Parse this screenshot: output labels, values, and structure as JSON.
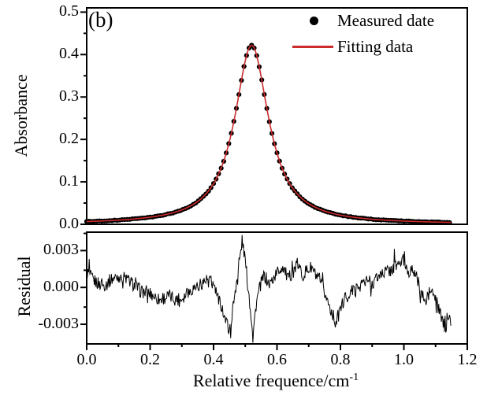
{
  "figure": {
    "panel_label": "(b)",
    "background": "#ffffff",
    "axis_color": "#000000",
    "xlabel_main": "Relative frequence/cm",
    "xlabel_sup": "-1",
    "top_panel": {
      "ylabel": "Absorbance"
    },
    "bottom_panel": {
      "ylabel": "Residual"
    },
    "legend": {
      "items": [
        {
          "marker": "dot",
          "marker_color": "#000000",
          "label": "Measured date"
        },
        {
          "marker": "line",
          "marker_color": "#cc2b2b",
          "label": "Fitting data"
        }
      ]
    }
  },
  "chart_data": [
    {
      "type": "scatter",
      "panel": "top",
      "title": "",
      "xlabel": "Relative frequence/cm^-1",
      "ylabel": "Absorbance",
      "xlim": [
        0,
        1.2
      ],
      "ylim": [
        0,
        0.51
      ],
      "grid": false,
      "legend_position": "top-right",
      "x_tick_values": [
        0,
        0.2,
        0.4,
        0.6,
        0.8,
        1.0,
        1.2
      ],
      "x_tick_labels": [
        "0.0",
        "0.2",
        "0.4",
        "0.6",
        "0.8",
        "1.0",
        "1.2"
      ],
      "x_minor_step": 0.1,
      "y_tick_values": [
        0,
        0.1,
        0.2,
        0.3,
        0.4,
        0.5
      ],
      "y_tick_labels": [
        "0.0",
        "0.1",
        "0.2",
        "0.3",
        "0.4",
        "0.5"
      ],
      "y_minor_step": 0.05,
      "series": [
        {
          "name": "Measured date",
          "type": "scatter",
          "color": "#000000",
          "model": {
            "kind": "lorentzian",
            "amplitude": 0.422,
            "center": 0.52,
            "gamma": 0.065,
            "baseline": 0
          },
          "x_start": 0,
          "x_end": 1.148,
          "x_step": 0.008,
          "noise_amp": 0.0006,
          "dot_radius": 3.1
        },
        {
          "name": "Fitting data",
          "type": "line",
          "color": "#cc2b2b",
          "model": {
            "kind": "lorentzian",
            "amplitude": 0.422,
            "center": 0.52,
            "gamma": 0.065,
            "baseline": 0
          },
          "x_start": 0,
          "x_end": 1.148,
          "x_step": 0.004,
          "line_width": 1.6
        }
      ],
      "fit_samples": {
        "x": [
          0,
          0.05,
          0.1,
          0.15,
          0.2,
          0.25,
          0.3,
          0.35,
          0.4,
          0.45,
          0.5,
          0.52,
          0.55,
          0.6,
          0.65,
          0.7,
          0.75,
          0.8,
          0.85,
          0.9,
          0.95,
          1.0,
          1.05,
          1.1,
          1.15
        ],
        "y": [
          0.0065,
          0.0079,
          0.0099,
          0.0126,
          0.0167,
          0.0231,
          0.0339,
          0.0538,
          0.0957,
          0.1954,
          0.3855,
          0.422,
          0.3479,
          0.1678,
          0.0844,
          0.0487,
          0.0312,
          0.0216,
          0.0158,
          0.012,
          0.0094,
          0.0076,
          0.0063,
          0.0052,
          0.0044
        ]
      }
    },
    {
      "type": "line",
      "panel": "bottom",
      "ylabel": "Residual",
      "xlim": [
        0,
        1.2
      ],
      "ylim": [
        -0.0046,
        0.0045
      ],
      "grid": false,
      "y_tick_values": [
        0.003,
        0,
        -0.003
      ],
      "y_tick_labels": [
        "0.003",
        "0.000",
        "-0.003"
      ],
      "y_minor_step": 0.0015,
      "series": [
        {
          "name": "Residual",
          "type": "line",
          "color": "#000000",
          "x_start": 0,
          "x_end": 1.148,
          "x_step": 0.002,
          "noise_amp": 0.00055,
          "spike_prob": 0.1,
          "spike_amp": 0.0011,
          "line_width": 1,
          "mean_points": [
            [
              0,
              0.0013
            ],
            [
              0.02,
              0.0006
            ],
            [
              0.05,
              0.0001
            ],
            [
              0.08,
              0.0007
            ],
            [
              0.11,
              0.001
            ],
            [
              0.14,
              0.0004
            ],
            [
              0.17,
              -0.0003
            ],
            [
              0.2,
              -0.0005
            ],
            [
              0.23,
              -0.001
            ],
            [
              0.26,
              -0.0007
            ],
            [
              0.29,
              -0.0011
            ],
            [
              0.32,
              -0.0004
            ],
            [
              0.35,
              0.0002
            ],
            [
              0.38,
              0.0006
            ],
            [
              0.4,
              0.0002
            ],
            [
              0.415,
              -0.0008
            ],
            [
              0.43,
              -0.0019
            ],
            [
              0.443,
              -0.0031
            ],
            [
              0.452,
              -0.0034
            ],
            [
              0.462,
              -0.0015
            ],
            [
              0.472,
              0.0005
            ],
            [
              0.482,
              0.0022
            ],
            [
              0.49,
              0.0038
            ],
            [
              0.497,
              0.0028
            ],
            [
              0.504,
              0.0012
            ],
            [
              0.511,
              -0.0005
            ],
            [
              0.518,
              -0.0022
            ],
            [
              0.525,
              -0.0037
            ],
            [
              0.535,
              -0.0012
            ],
            [
              0.548,
              0.0002
            ],
            [
              0.56,
              0.001
            ],
            [
              0.575,
              0.0002
            ],
            [
              0.59,
              0.0008
            ],
            [
              0.605,
              0.0014
            ],
            [
              0.62,
              0.0017
            ],
            [
              0.635,
              0.0006
            ],
            [
              0.65,
              0.0014
            ],
            [
              0.665,
              0.0019
            ],
            [
              0.68,
              0.001
            ],
            [
              0.695,
              0.0014
            ],
            [
              0.71,
              0.0016
            ],
            [
              0.725,
              0.0008
            ],
            [
              0.74,
              0.0002
            ],
            [
              0.755,
              -0.0008
            ],
            [
              0.77,
              -0.0018
            ],
            [
              0.785,
              -0.0029
            ],
            [
              0.8,
              -0.0018
            ],
            [
              0.815,
              -0.0008
            ],
            [
              0.83,
              -0.0004
            ],
            [
              0.85,
              -0.0002
            ],
            [
              0.865,
              0.0003
            ],
            [
              0.88,
              0.0006
            ],
            [
              0.9,
              0.0004
            ],
            [
              0.92,
              0.0009
            ],
            [
              0.94,
              0.0013
            ],
            [
              0.96,
              0.0014
            ],
            [
              0.98,
              0.0019
            ],
            [
              1.0,
              0.0021
            ],
            [
              1.015,
              0.0013
            ],
            [
              1.03,
              0.0015
            ],
            [
              1.045,
              0.0004
            ],
            [
              1.06,
              -0.0008
            ],
            [
              1.07,
              -0.0014
            ],
            [
              1.08,
              -0.0004
            ],
            [
              1.09,
              -0.0003
            ],
            [
              1.1,
              -0.001
            ],
            [
              1.115,
              -0.0022
            ],
            [
              1.13,
              -0.0034
            ],
            [
              1.14,
              -0.0024
            ],
            [
              1.148,
              -0.0031
            ]
          ]
        }
      ]
    }
  ]
}
